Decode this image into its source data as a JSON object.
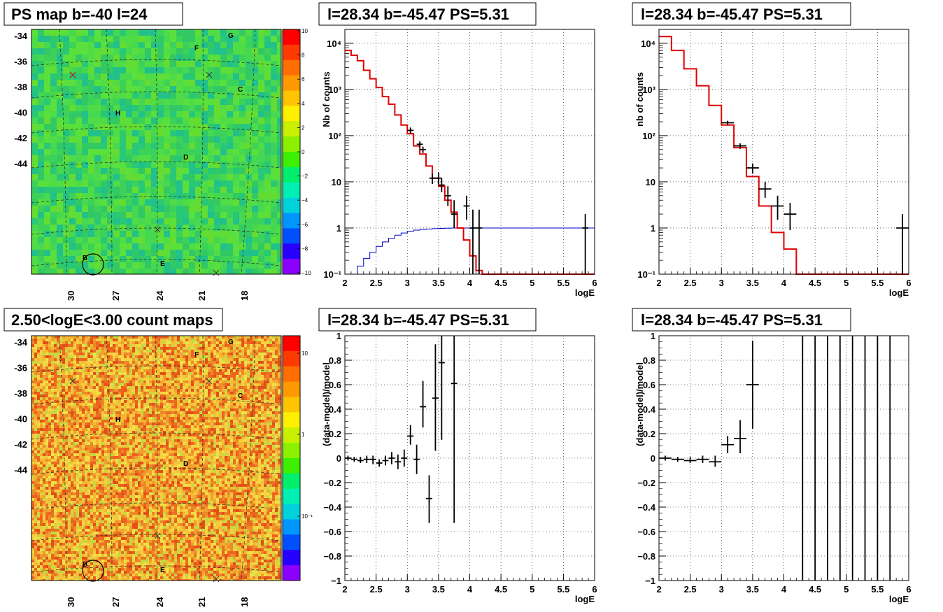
{
  "maps": [
    {
      "title": "PS map b=-40 l=24",
      "yticks": [
        "-34",
        "-36",
        "-38",
        "-40",
        "-42",
        "-44"
      ],
      "xticks": [
        "30",
        "27",
        "24",
        "21",
        "18"
      ],
      "colorbar_ticks": [
        "10",
        "8",
        "6",
        "4",
        "2",
        "0",
        "−2",
        "−4",
        "−6",
        "−8",
        "−10"
      ],
      "colorbar_colors": [
        "#ff0000",
        "#ff3a00",
        "#ff6e00",
        "#ff9900",
        "#ffc400",
        "#fff000",
        "#c8f000",
        "#8cf000",
        "#3cf000",
        "#00f06e",
        "#00f0b4",
        "#00d2dc",
        "#0096ff",
        "#0050ff",
        "#2800ff",
        "#8c00ff"
      ],
      "sources": [
        {
          "label": "G"
        },
        {
          "label": "F"
        },
        {
          "label": "C"
        },
        {
          "label": "H"
        },
        {
          "label": "D"
        },
        {
          "label": "B"
        },
        {
          "label": "E"
        }
      ],
      "base_color": "#3cd25a"
    },
    {
      "title": "2.50<logE<3.00 count maps",
      "yticks": [
        "-34",
        "-36",
        "-38",
        "-40",
        "-42",
        "-44"
      ],
      "xticks": [
        "30",
        "27",
        "24",
        "21",
        "18"
      ],
      "colorbar_ticks": [
        "10",
        "1",
        "10⁻¹"
      ],
      "colorbar_colors": [
        "#ff0000",
        "#ff3a00",
        "#ff6e00",
        "#ff9900",
        "#ffc400",
        "#fff000",
        "#c8f000",
        "#8cf000",
        "#3cf000",
        "#00f06e",
        "#00f0b4",
        "#00d2dc",
        "#0096ff",
        "#0050ff",
        "#2800ff",
        "#8c00ff"
      ],
      "sources": [
        {
          "label": "G"
        },
        {
          "label": "F"
        },
        {
          "label": "C"
        },
        {
          "label": "H"
        },
        {
          "label": "D"
        },
        {
          "label": "B"
        },
        {
          "label": "E"
        }
      ],
      "base_color": "#f0a030"
    }
  ],
  "colors": {
    "model": "#e00000",
    "acceptance": "#0000cc",
    "data": "#000000"
  },
  "chart_data": [
    {
      "type": "line",
      "title": "l=28.34 b=-45.47 PS=5.31",
      "xlabel": "logE",
      "ylabel": "Nb of counts",
      "xlim": [
        2,
        6
      ],
      "ylim": [
        0.1,
        20000
      ],
      "yscale": "log",
      "grid": true,
      "xticks": [
        "2",
        "2.5",
        "3",
        "3.5",
        "4",
        "4.5",
        "5",
        "5.5",
        "6"
      ],
      "yticks": [
        {
          "v": 0.1,
          "t": "10⁻¹"
        },
        {
          "v": 1,
          "t": "1"
        },
        {
          "v": 10,
          "t": "10"
        },
        {
          "v": 100,
          "t": "10²"
        },
        {
          "v": 1000,
          "t": "10³"
        },
        {
          "v": 10000,
          "t": "10⁴"
        }
      ],
      "bin_width": 0.1,
      "model_x": [
        2.0,
        2.1,
        2.2,
        2.3,
        2.4,
        2.5,
        2.6,
        2.7,
        2.8,
        2.9,
        3.0,
        3.1,
        3.2,
        3.3,
        3.4,
        3.5,
        3.6,
        3.7,
        3.8,
        3.9,
        4.0,
        4.1,
        4.2
      ],
      "model_y": [
        7000,
        5500,
        4200,
        2600,
        1700,
        1100,
        700,
        480,
        280,
        170,
        110,
        60,
        40,
        22,
        12,
        8,
        4,
        2.2,
        1.0,
        0.55,
        0.25,
        0.12,
        0.1
      ],
      "accept_x": [
        2.0,
        2.1,
        2.2,
        2.3,
        2.4,
        2.5,
        2.6,
        2.7,
        2.8,
        2.9,
        3.0,
        3.1,
        3.2,
        3.3,
        3.4,
        3.5,
        3.6,
        3.7,
        3.8,
        6.0
      ],
      "accept_y": [
        0.06,
        0.1,
        0.15,
        0.22,
        0.3,
        0.4,
        0.5,
        0.6,
        0.7,
        0.78,
        0.85,
        0.9,
        0.93,
        0.95,
        0.97,
        0.98,
        0.99,
        1.0,
        1.0,
        1.0
      ],
      "points": [
        {
          "x": 3.05,
          "y": 130,
          "lo": 110,
          "hi": 150,
          "xerr": 0.05
        },
        {
          "x": 3.2,
          "y": 65,
          "lo": 55,
          "hi": 75,
          "xerr": 0.05
        },
        {
          "x": 3.25,
          "y": 50,
          "lo": 42,
          "hi": 58,
          "xerr": 0.05
        },
        {
          "x": 3.4,
          "y": 12,
          "lo": 9,
          "hi": 15,
          "xerr": 0.05
        },
        {
          "x": 3.5,
          "y": 12,
          "lo": 9,
          "hi": 16,
          "xerr": 0.05
        },
        {
          "x": 3.55,
          "y": 8.5,
          "lo": 6,
          "hi": 12,
          "xerr": 0.05
        },
        {
          "x": 3.65,
          "y": 5,
          "lo": 3,
          "hi": 8,
          "xerr": 0.05
        },
        {
          "x": 3.75,
          "y": 2,
          "lo": 1,
          "hi": 4,
          "xerr": 0.05
        },
        {
          "x": 3.95,
          "y": 3,
          "lo": 1.5,
          "hi": 5,
          "xerr": 0.05
        },
        {
          "x": 4.05,
          "y": 1,
          "lo": 0.1,
          "hi": 2.5,
          "xerr": 0.05
        },
        {
          "x": 4.15,
          "y": 1,
          "lo": 0.1,
          "hi": 2.5,
          "xerr": 0.05
        },
        {
          "x": 5.85,
          "y": 1,
          "lo": 0.1,
          "hi": 2.0,
          "xerr": 0.05
        }
      ]
    },
    {
      "type": "line",
      "title": "l=28.34 b=-45.47 PS=5.31",
      "xlabel": "logE",
      "ylabel": "nb of counts",
      "xlim": [
        2,
        6
      ],
      "ylim": [
        0.1,
        20000
      ],
      "yscale": "log",
      "grid": true,
      "xticks": [
        "2",
        "2.5",
        "3",
        "3.5",
        "4",
        "4.5",
        "5",
        "5.5",
        "6"
      ],
      "yticks": [
        {
          "v": 0.1,
          "t": "10⁻¹"
        },
        {
          "v": 1,
          "t": "1"
        },
        {
          "v": 10,
          "t": "10"
        },
        {
          "v": 100,
          "t": "10²"
        },
        {
          "v": 1000,
          "t": "10³"
        },
        {
          "v": 10000,
          "t": "10⁴"
        }
      ],
      "bin_width": 0.2,
      "model_x": [
        2.0,
        2.2,
        2.4,
        2.6,
        2.8,
        3.0,
        3.2,
        3.4,
        3.6,
        3.8,
        4.0,
        4.2
      ],
      "model_y": [
        14000,
        7000,
        2800,
        1200,
        450,
        170,
        55,
        13,
        3,
        0.8,
        0.35,
        0.1
      ],
      "points": [
        {
          "x": 3.1,
          "y": 190,
          "lo": 170,
          "hi": 210,
          "xerr": 0.1
        },
        {
          "x": 3.3,
          "y": 60,
          "lo": 52,
          "hi": 68,
          "xerr": 0.1
        },
        {
          "x": 3.5,
          "y": 20,
          "lo": 15,
          "hi": 25,
          "xerr": 0.1
        },
        {
          "x": 3.7,
          "y": 7,
          "lo": 4.5,
          "hi": 10,
          "xerr": 0.1
        },
        {
          "x": 3.9,
          "y": 3,
          "lo": 1.5,
          "hi": 5,
          "xerr": 0.1
        },
        {
          "x": 4.1,
          "y": 2,
          "lo": 0.9,
          "hi": 3.5,
          "xerr": 0.1
        },
        {
          "x": 5.9,
          "y": 1,
          "lo": 0.1,
          "hi": 2.0,
          "xerr": 0.1
        }
      ]
    },
    {
      "type": "scatter",
      "title": "l=28.34 b=-45.47 PS=5.31",
      "xlabel": "logE",
      "ylabel": "(data-model)/model",
      "xlim": [
        2,
        6
      ],
      "ylim": [
        -1,
        1
      ],
      "grid": true,
      "xticks": [
        "2",
        "2.5",
        "3",
        "3.5",
        "4",
        "4.5",
        "5",
        "5.5",
        "6"
      ],
      "yticks": [
        "1",
        "0.8",
        "0.6",
        "0.4",
        "0.2",
        "0",
        "−0.2",
        "−0.4",
        "−0.6",
        "−0.8",
        "−1"
      ],
      "points": [
        {
          "x": 2.05,
          "y": 0.0,
          "lo": -0.02,
          "hi": 0.02,
          "xerr": 0.05
        },
        {
          "x": 2.15,
          "y": -0.01,
          "lo": -0.03,
          "hi": 0.01,
          "xerr": 0.05
        },
        {
          "x": 2.25,
          "y": -0.02,
          "lo": -0.04,
          "hi": 0.01,
          "xerr": 0.05
        },
        {
          "x": 2.35,
          "y": -0.01,
          "lo": -0.04,
          "hi": 0.02,
          "xerr": 0.05
        },
        {
          "x": 2.45,
          "y": -0.01,
          "lo": -0.05,
          "hi": 0.02,
          "xerr": 0.05
        },
        {
          "x": 2.55,
          "y": -0.04,
          "lo": -0.07,
          "hi": -0.01,
          "xerr": 0.05
        },
        {
          "x": 2.65,
          "y": -0.02,
          "lo": -0.06,
          "hi": 0.02,
          "xerr": 0.05
        },
        {
          "x": 2.75,
          "y": 0.0,
          "lo": -0.05,
          "hi": 0.05,
          "xerr": 0.05
        },
        {
          "x": 2.85,
          "y": -0.03,
          "lo": -0.09,
          "hi": 0.03,
          "xerr": 0.05
        },
        {
          "x": 2.95,
          "y": 0.0,
          "lo": -0.07,
          "hi": 0.07,
          "xerr": 0.05
        },
        {
          "x": 3.05,
          "y": 0.18,
          "lo": 0.11,
          "hi": 0.27,
          "xerr": 0.05
        },
        {
          "x": 3.15,
          "y": -0.01,
          "lo": -0.13,
          "hi": 0.11,
          "xerr": 0.05
        },
        {
          "x": 3.25,
          "y": 0.42,
          "lo": 0.25,
          "hi": 0.63,
          "xerr": 0.05
        },
        {
          "x": 3.35,
          "y": -0.33,
          "lo": -0.53,
          "hi": -0.14,
          "xerr": 0.05
        },
        {
          "x": 3.45,
          "y": 0.49,
          "lo": 0.06,
          "hi": 0.93,
          "xerr": 0.05
        },
        {
          "x": 3.55,
          "y": 0.78,
          "lo": 0.15,
          "hi": 1.0,
          "xerr": 0.05
        },
        {
          "x": 3.75,
          "y": 0.61,
          "lo": -0.53,
          "hi": 1.0,
          "xerr": 0.05
        }
      ]
    },
    {
      "type": "scatter",
      "title": "l=28.34 b=-45.47 PS=5.31",
      "xlabel": "logE",
      "ylabel": "(data-model)/model",
      "xlim": [
        2,
        6
      ],
      "ylim": [
        -1,
        1
      ],
      "grid": true,
      "xticks": [
        "2",
        "2.5",
        "3",
        "3.5",
        "4",
        "4.5",
        "5",
        "5.5",
        "6"
      ],
      "yticks": [
        "1",
        "0.8",
        "0.6",
        "0.4",
        "0.2",
        "0",
        "−0.2",
        "−0.4",
        "−0.6",
        "−0.8",
        "−1"
      ],
      "points": [
        {
          "x": 2.1,
          "y": 0.0,
          "lo": -0.02,
          "hi": 0.02,
          "xerr": 0.1
        },
        {
          "x": 2.3,
          "y": -0.01,
          "lo": -0.03,
          "hi": 0.01,
          "xerr": 0.1
        },
        {
          "x": 2.5,
          "y": -0.02,
          "lo": -0.04,
          "hi": 0.01,
          "xerr": 0.1
        },
        {
          "x": 2.7,
          "y": -0.01,
          "lo": -0.04,
          "hi": 0.02,
          "xerr": 0.1
        },
        {
          "x": 2.9,
          "y": -0.03,
          "lo": -0.07,
          "hi": 0.02,
          "xerr": 0.1
        },
        {
          "x": 3.1,
          "y": 0.11,
          "lo": 0.04,
          "hi": 0.18,
          "xerr": 0.1
        },
        {
          "x": 3.3,
          "y": 0.16,
          "lo": 0.04,
          "hi": 0.31,
          "xerr": 0.1
        },
        {
          "x": 3.5,
          "y": 0.6,
          "lo": 0.24,
          "hi": 0.96,
          "xerr": 0.1
        },
        {
          "x": 4.3,
          "y": 0,
          "lo": -1,
          "hi": 1,
          "xerr": 0
        },
        {
          "x": 4.5,
          "y": 0,
          "lo": -1,
          "hi": 1,
          "xerr": 0
        },
        {
          "x": 4.7,
          "y": 0,
          "lo": -1,
          "hi": 1,
          "xerr": 0
        },
        {
          "x": 4.9,
          "y": 0,
          "lo": -1,
          "hi": 1,
          "xerr": 0
        },
        {
          "x": 5.1,
          "y": 0,
          "lo": -1,
          "hi": 1,
          "xerr": 0
        },
        {
          "x": 5.3,
          "y": 0,
          "lo": -1,
          "hi": 1,
          "xerr": 0
        },
        {
          "x": 5.5,
          "y": 0,
          "lo": -1,
          "hi": 1,
          "xerr": 0
        },
        {
          "x": 5.7,
          "y": 0,
          "lo": -1,
          "hi": 1,
          "xerr": 0
        }
      ]
    }
  ]
}
